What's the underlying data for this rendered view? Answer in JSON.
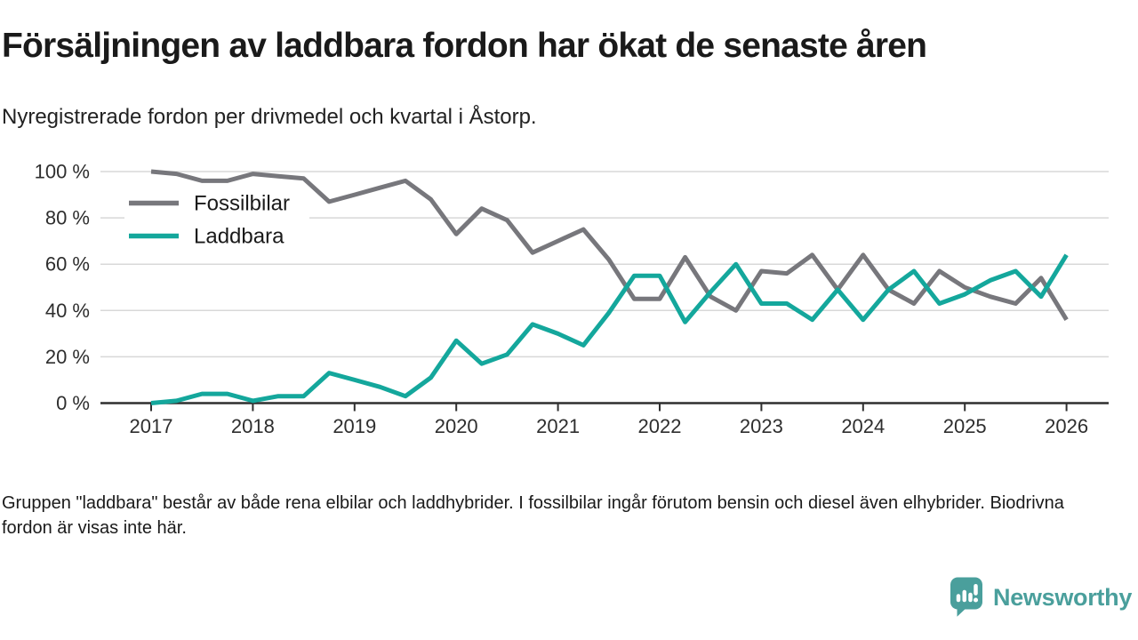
{
  "header": {
    "title": "Försäljningen av laddbara fordon har ökat de senaste åren",
    "subtitle": "Nyregistrerade fordon per drivmedel och kvartal i Åstorp."
  },
  "footer": {
    "note": "Gruppen \"laddbara\" består av både rena elbilar och laddhybrider. I fossilbilar ingår förutom bensin och diesel även elhybrider. Biodrivna fordon är visas inte här."
  },
  "branding": {
    "name": "Newsworthy",
    "color": "#4a9f9c",
    "logo_icon": "speech-bubble-bar-chart-exclamation-icon"
  },
  "chart_data": {
    "type": "line",
    "title": "Nyregistrerade fordon per drivmedel och kvartal i Åstorp",
    "xlabel": "",
    "ylabel": "",
    "ylim": [
      0,
      100
    ],
    "grid": "horizontal",
    "legend_position": "top-left-inside",
    "grid_color": "#d8d8d8",
    "axis_color": "#2f2f2f",
    "text_color": "#2e2e2e",
    "y_ticks": [
      {
        "value": 0,
        "label": "0 %"
      },
      {
        "value": 20,
        "label": "20 %"
      },
      {
        "value": 40,
        "label": "40 %"
      },
      {
        "value": 60,
        "label": "60 %"
      },
      {
        "value": 80,
        "label": "80 %"
      },
      {
        "value": 100,
        "label": "100 %"
      }
    ],
    "x_ticks": [
      "2017",
      "2018",
      "2019",
      "2020",
      "2021",
      "2022",
      "2023",
      "2024",
      "2025",
      "2026"
    ],
    "quarters": [
      "2017Q1",
      "2017Q2",
      "2017Q3",
      "2017Q4",
      "2018Q1",
      "2018Q2",
      "2018Q3",
      "2018Q4",
      "2019Q1",
      "2019Q2",
      "2019Q3",
      "2019Q4",
      "2020Q1",
      "2020Q2",
      "2020Q3",
      "2020Q4",
      "2021Q1",
      "2021Q2",
      "2021Q3",
      "2021Q4",
      "2022Q1",
      "2022Q2",
      "2022Q3",
      "2022Q4",
      "2023Q1",
      "2023Q2",
      "2023Q3",
      "2023Q4",
      "2024Q1",
      "2024Q2",
      "2024Q3",
      "2024Q4",
      "2025Q1",
      "2025Q2",
      "2025Q3",
      "2025Q4",
      "2026Q1"
    ],
    "series": [
      {
        "name": "Fossilbilar",
        "color": "#77777c",
        "values": [
          100,
          99,
          96,
          96,
          99,
          98,
          97,
          87,
          90,
          93,
          96,
          88,
          73,
          84,
          79,
          65,
          70,
          75,
          62,
          45,
          45,
          63,
          46,
          40,
          57,
          56,
          64,
          49,
          64,
          49,
          43,
          57,
          50,
          46,
          43,
          54,
          36
        ]
      },
      {
        "name": "Laddbara",
        "color": "#14a79c",
        "values": [
          0,
          1,
          4,
          4,
          1,
          3,
          3,
          13,
          10,
          7,
          3,
          11,
          27,
          17,
          21,
          34,
          30,
          25,
          39,
          55,
          55,
          35,
          48,
          60,
          43,
          43,
          36,
          49,
          36,
          49,
          57,
          43,
          47,
          53,
          57,
          46,
          64
        ]
      }
    ]
  }
}
